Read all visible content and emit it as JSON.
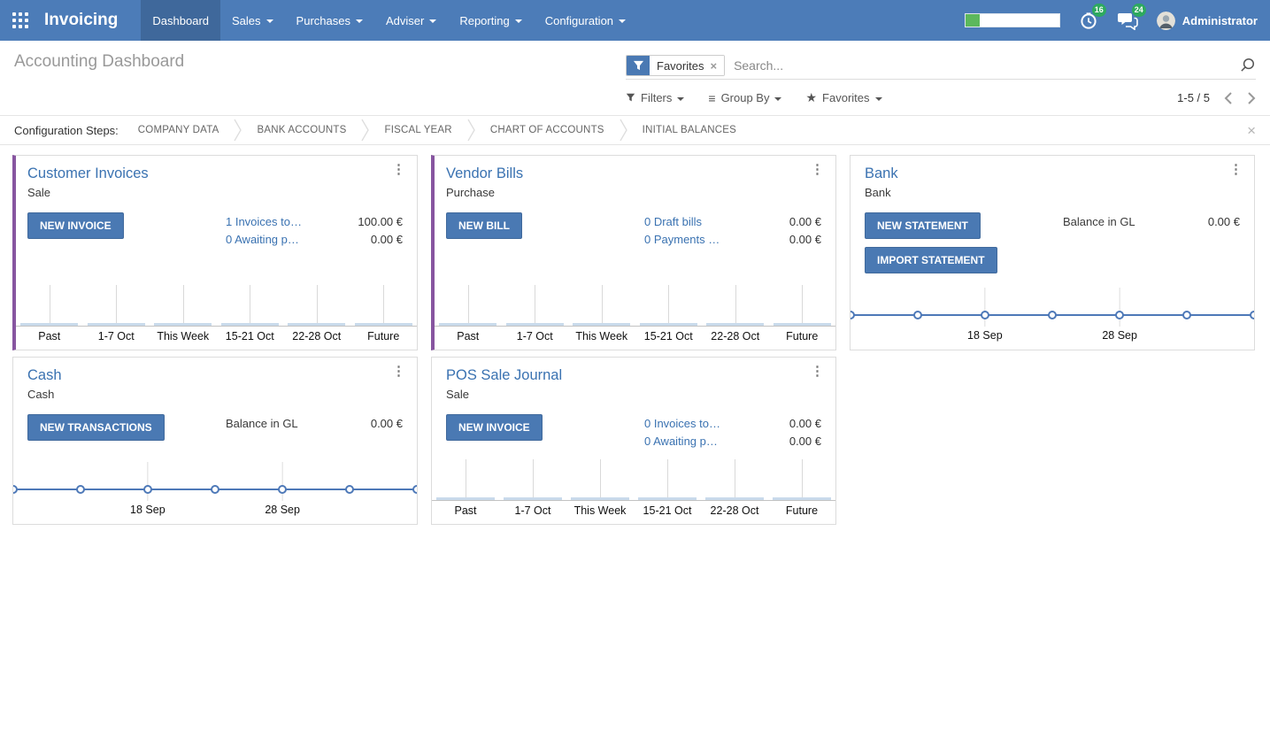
{
  "colors": {
    "topbar_bg": "#4C7CB8",
    "topbar_active_bg": "#3F689B",
    "accent_purple": "#8755A0",
    "primary_button_blue": "#4A79B3",
    "link_blue": "#3A72B1",
    "badge_green": "#2EA95F",
    "progress_green": "#5CB85C",
    "chart_line_blue": "#4E79B8",
    "chart_bar_blue": "#C9DAEB"
  },
  "icons": {
    "kebab": "⋮",
    "close": "×",
    "group_by": "≡",
    "favorites_star": "★"
  },
  "topbar": {
    "app_name": "Invoicing",
    "menus": [
      {
        "label": "Dashboard",
        "active": true
      },
      {
        "label": "Sales"
      },
      {
        "label": "Purchases"
      },
      {
        "label": "Adviser"
      },
      {
        "label": "Reporting"
      },
      {
        "label": "Configuration"
      }
    ],
    "progress_percent": 15,
    "activity_badge": "16",
    "messages_badge": "24",
    "user_name": "Administrator"
  },
  "control_panel": {
    "title": "Accounting Dashboard",
    "search": {
      "facet_label": "Favorites",
      "placeholder": "Search..."
    },
    "buttons": {
      "filters": "Filters",
      "group_by": "Group By",
      "favorites": "Favorites"
    },
    "pager": {
      "range": "1-5 / 5"
    }
  },
  "config_steps": {
    "label": "Configuration Steps:",
    "steps": [
      "COMPANY DATA",
      "BANK ACCOUNTS",
      "FISCAL YEAR",
      "CHART OF ACCOUNTS",
      "INITIAL BALANCES"
    ]
  },
  "cards": [
    {
      "title": "Customer Invoices",
      "subtitle": "Sale",
      "buttons": [
        "NEW INVOICE"
      ],
      "stats": [
        {
          "label": "1 Invoices to…",
          "amount": "100.00 €"
        },
        {
          "label": "0 Awaiting p…",
          "amount": "0.00 €"
        }
      ],
      "chart": {
        "type": "bar",
        "categories": [
          "Past",
          "1-7 Oct",
          "This Week",
          "15-21 Oct",
          "22-28 Oct",
          "Future"
        ],
        "values": [
          0,
          0,
          0,
          0,
          0,
          0
        ]
      }
    },
    {
      "title": "Vendor Bills",
      "subtitle": "Purchase",
      "buttons": [
        "NEW BILL"
      ],
      "stats": [
        {
          "label": "0 Draft bills",
          "amount": "0.00 €"
        },
        {
          "label": "0 Payments …",
          "amount": "0.00 €"
        }
      ],
      "chart": {
        "type": "bar",
        "categories": [
          "Past",
          "1-7 Oct",
          "This Week",
          "15-21 Oct",
          "22-28 Oct",
          "Future"
        ],
        "values": [
          0,
          0,
          0,
          0,
          0,
          0
        ]
      }
    },
    {
      "title": "Bank",
      "subtitle": "Bank",
      "buttons": [
        "NEW STATEMENT",
        "IMPORT STATEMENT"
      ],
      "stats": [
        {
          "label": "Balance in GL",
          "amount": "0.00 €"
        }
      ],
      "chart": {
        "type": "line",
        "values": [
          0,
          0,
          0,
          0,
          0,
          0,
          0
        ],
        "x_ticks": [
          {
            "label": "18 Sep",
            "pos": 0.333
          },
          {
            "label": "28 Sep",
            "pos": 0.667
          }
        ]
      }
    },
    {
      "title": "Cash",
      "subtitle": "Cash",
      "buttons": [
        "NEW TRANSACTIONS"
      ],
      "stats": [
        {
          "label": "Balance in GL",
          "amount": "0.00 €"
        }
      ],
      "chart": {
        "type": "line",
        "values": [
          0,
          0,
          0,
          0,
          0,
          0,
          0
        ],
        "x_ticks": [
          {
            "label": "18 Sep",
            "pos": 0.333
          },
          {
            "label": "28 Sep",
            "pos": 0.667
          }
        ]
      }
    },
    {
      "title": "POS Sale Journal",
      "subtitle": "Sale",
      "buttons": [
        "NEW INVOICE"
      ],
      "stats": [
        {
          "label": "0 Invoices to…",
          "amount": "0.00 €"
        },
        {
          "label": "0 Awaiting p…",
          "amount": "0.00 €"
        }
      ],
      "chart": {
        "type": "bar",
        "categories": [
          "Past",
          "1-7 Oct",
          "This Week",
          "15-21 Oct",
          "22-28 Oct",
          "Future"
        ],
        "values": [
          0,
          0,
          0,
          0,
          0,
          0
        ]
      }
    }
  ]
}
